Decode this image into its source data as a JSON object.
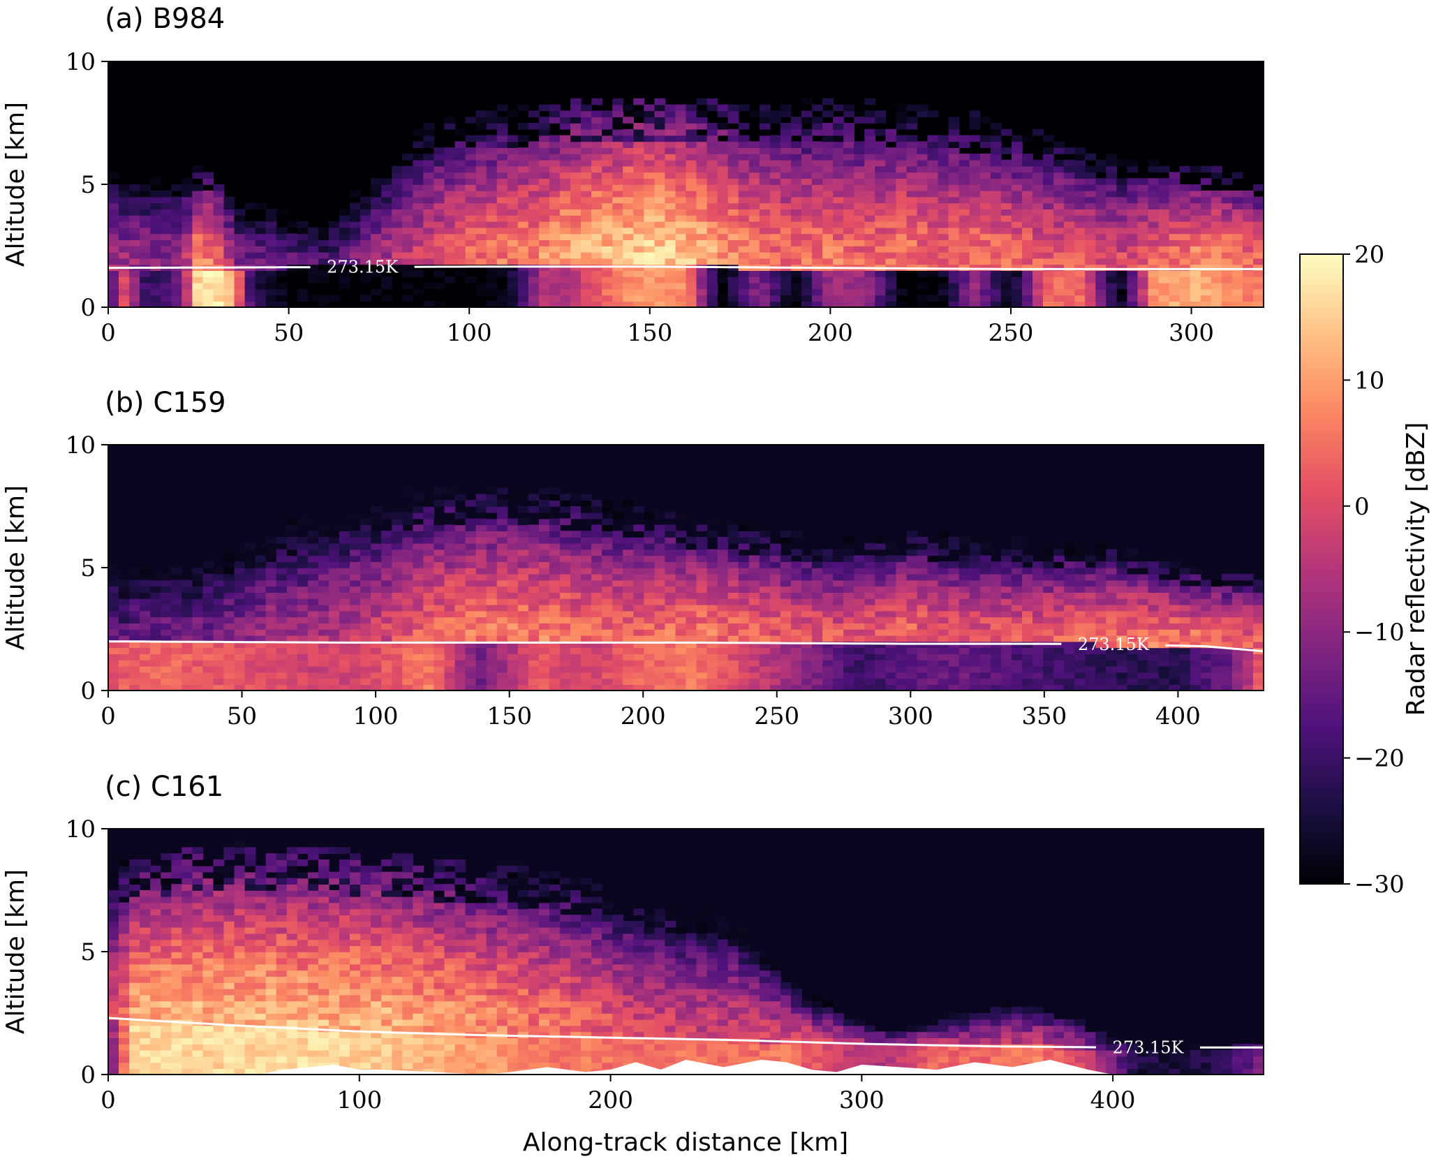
{
  "chart_data": [
    {
      "type": "heatmap",
      "title": "(a) B984",
      "xlabel": "",
      "ylabel": "Altitude [km]",
      "xlim": [
        0,
        320
      ],
      "ylim": [
        0,
        10
      ],
      "xticks": [
        0,
        50,
        100,
        150,
        200,
        250,
        300
      ],
      "yticks": [
        0,
        5,
        10
      ],
      "xtick_labels": [
        "0",
        "50",
        "100",
        "150",
        "200",
        "250",
        "300"
      ],
      "ytick_labels": [
        "0",
        "5",
        "10"
      ],
      "value_unit": "dBZ",
      "columns": [
        {
          "x": 0,
          "top": 6.6,
          "peak": -8,
          "rain": -18
        },
        {
          "x": 5,
          "top": 6.3,
          "peak": -8,
          "rain": 2
        },
        {
          "x": 10,
          "top": 6.2,
          "peak": -9,
          "rain": -20
        },
        {
          "x": 15,
          "top": 6.4,
          "peak": -10,
          "rain": -20
        },
        {
          "x": 20,
          "top": 6.1,
          "peak": -9,
          "rain": -15
        },
        {
          "x": 25,
          "top": 5.8,
          "peak": 8,
          "rain": 18
        },
        {
          "x": 30,
          "top": 5.6,
          "peak": 6,
          "rain": 18
        },
        {
          "x": 35,
          "top": 5.5,
          "peak": -10,
          "rain": 10
        },
        {
          "x": 40,
          "top": 5.4,
          "peak": -14,
          "rain": -22
        },
        {
          "x": 50,
          "top": 5.2,
          "peak": -16,
          "rain": -30
        },
        {
          "x": 60,
          "top": 4.8,
          "peak": -18,
          "rain": -30
        },
        {
          "x": 70,
          "top": 5.8,
          "peak": -10,
          "rain": -30
        },
        {
          "x": 80,
          "top": 6.8,
          "peak": -4,
          "rain": -30
        },
        {
          "x": 90,
          "top": 8.0,
          "peak": 0,
          "rain": -30
        },
        {
          "x": 100,
          "top": 8.0,
          "peak": 4,
          "rain": -30
        },
        {
          "x": 110,
          "top": 8.2,
          "peak": 6,
          "rain": -30
        },
        {
          "x": 120,
          "top": 8.3,
          "peak": 8,
          "rain": -6
        },
        {
          "x": 130,
          "top": 8.4,
          "peak": 12,
          "rain": -4
        },
        {
          "x": 140,
          "top": 8.5,
          "peak": 14,
          "rain": 6
        },
        {
          "x": 150,
          "top": 8.6,
          "peak": 16,
          "rain": 10
        },
        {
          "x": 160,
          "top": 8.5,
          "peak": 14,
          "rain": 8
        },
        {
          "x": 170,
          "top": 8.4,
          "peak": 10,
          "rain": -30
        },
        {
          "x": 180,
          "top": 8.3,
          "peak": 6,
          "rain": -10
        },
        {
          "x": 190,
          "top": 8.4,
          "peak": 4,
          "rain": -30
        },
        {
          "x": 200,
          "top": 8.5,
          "peak": 6,
          "rain": -8
        },
        {
          "x": 210,
          "top": 8.4,
          "peak": 4,
          "rain": -8
        },
        {
          "x": 220,
          "top": 8.2,
          "peak": 6,
          "rain": -30
        },
        {
          "x": 230,
          "top": 8.1,
          "peak": 4,
          "rain": -30
        },
        {
          "x": 240,
          "top": 7.9,
          "peak": 6,
          "rain": -8
        },
        {
          "x": 250,
          "top": 7.6,
          "peak": 4,
          "rain": -30
        },
        {
          "x": 260,
          "top": 7.4,
          "peak": 2,
          "rain": 4
        },
        {
          "x": 270,
          "top": 6.8,
          "peak": 2,
          "rain": 4
        },
        {
          "x": 280,
          "top": 6.4,
          "peak": 0,
          "rain": -30
        },
        {
          "x": 290,
          "top": 6.2,
          "peak": 4,
          "rain": 10
        },
        {
          "x": 300,
          "top": 5.9,
          "peak": 8,
          "rain": 12
        },
        {
          "x": 310,
          "top": 5.6,
          "peak": 8,
          "rain": 8
        },
        {
          "x": 320,
          "top": 5.4,
          "peak": 4,
          "rain": 6
        }
      ],
      "isotherm": {
        "label": "273.15K",
        "x": [
          0,
          100,
          150,
          200,
          250,
          320
        ],
        "y": [
          1.6,
          1.65,
          1.65,
          1.6,
          1.55,
          1.55
        ]
      }
    },
    {
      "type": "heatmap",
      "title": "(b) C159",
      "xlabel": "",
      "ylabel": "Altitude [km]",
      "xlim": [
        0,
        432
      ],
      "ylim": [
        0,
        10
      ],
      "xticks": [
        0,
        50,
        100,
        150,
        200,
        250,
        300,
        350,
        400
      ],
      "yticks": [
        0,
        5,
        10
      ],
      "xtick_labels": [
        "0",
        "50",
        "100",
        "150",
        "200",
        "250",
        "300",
        "350",
        "400"
      ],
      "ytick_labels": [
        "0",
        "5",
        "10"
      ],
      "value_unit": "dBZ",
      "columns": [
        {
          "x": 0,
          "top": 6.8,
          "peak": -16,
          "rain": 2
        },
        {
          "x": 20,
          "top": 6.6,
          "peak": -14,
          "rain": 4
        },
        {
          "x": 40,
          "top": 6.8,
          "peak": -12,
          "rain": 2
        },
        {
          "x": 60,
          "top": 7.4,
          "peak": -8,
          "rain": 0
        },
        {
          "x": 80,
          "top": 8.2,
          "peak": -6,
          "rain": -2
        },
        {
          "x": 100,
          "top": 8.0,
          "peak": -2,
          "rain": 0
        },
        {
          "x": 120,
          "top": 8.3,
          "peak": 4,
          "rain": 6
        },
        {
          "x": 140,
          "top": 8.4,
          "peak": 6,
          "rain": -14
        },
        {
          "x": 160,
          "top": 8.3,
          "peak": 6,
          "rain": 2
        },
        {
          "x": 180,
          "top": 8.0,
          "peak": 4,
          "rain": -2
        },
        {
          "x": 200,
          "top": 7.6,
          "peak": 4,
          "rain": 4
        },
        {
          "x": 220,
          "top": 7.0,
          "peak": 6,
          "rain": 6
        },
        {
          "x": 240,
          "top": 6.8,
          "peak": 4,
          "rain": -2
        },
        {
          "x": 260,
          "top": 6.4,
          "peak": 2,
          "rain": -10
        },
        {
          "x": 280,
          "top": 6.2,
          "peak": 2,
          "rain": -20
        },
        {
          "x": 300,
          "top": 6.6,
          "peak": 4,
          "rain": -16
        },
        {
          "x": 320,
          "top": 6.4,
          "peak": 2,
          "rain": -14
        },
        {
          "x": 340,
          "top": 6.2,
          "peak": 2,
          "rain": -18
        },
        {
          "x": 360,
          "top": 6.0,
          "peak": 4,
          "rain": -20
        },
        {
          "x": 380,
          "top": 5.8,
          "peak": 6,
          "rain": -22
        },
        {
          "x": 400,
          "top": 5.2,
          "peak": 6,
          "rain": -22
        },
        {
          "x": 420,
          "top": 5.0,
          "peak": 4,
          "rain": -14
        },
        {
          "x": 432,
          "top": 4.8,
          "peak": 4,
          "rain": 4
        }
      ],
      "isotherm": {
        "label": "273.15K",
        "x": [
          0,
          88,
          100,
          218,
          300,
          352,
          390,
          410,
          432
        ],
        "y": [
          2.0,
          1.95,
          1.95,
          1.95,
          1.9,
          1.9,
          1.85,
          1.8,
          1.6
        ]
      }
    },
    {
      "type": "heatmap",
      "title": "(c) C161",
      "xlabel": "Along-track distance [km]",
      "ylabel": "Altitude [km]",
      "xlim": [
        0,
        460
      ],
      "ylim": [
        0,
        10
      ],
      "xticks": [
        0,
        100,
        200,
        300,
        400
      ],
      "yticks": [
        0,
        5,
        10
      ],
      "xtick_labels": [
        "0",
        "100",
        "200",
        "300",
        "400"
      ],
      "ytick_labels": [
        "0",
        "5",
        "10"
      ],
      "value_unit": "dBZ",
      "columns": [
        {
          "x": 0,
          "top": 8.6,
          "peak": -4,
          "rain": -14
        },
        {
          "x": 10,
          "top": 8.8,
          "peak": 10,
          "rain": 16
        },
        {
          "x": 30,
          "top": 9.2,
          "peak": 12,
          "rain": 16
        },
        {
          "x": 50,
          "top": 9.4,
          "peak": 12,
          "rain": 16
        },
        {
          "x": 70,
          "top": 9.3,
          "peak": 12,
          "rain": 16
        },
        {
          "x": 90,
          "top": 9.2,
          "peak": 12,
          "rain": 16
        },
        {
          "x": 110,
          "top": 9.0,
          "peak": 12,
          "rain": 14
        },
        {
          "x": 130,
          "top": 8.8,
          "peak": 10,
          "rain": 12
        },
        {
          "x": 150,
          "top": 8.6,
          "peak": 8,
          "rain": 10
        },
        {
          "x": 170,
          "top": 8.4,
          "peak": 6,
          "rain": 6
        },
        {
          "x": 190,
          "top": 8.0,
          "peak": 4,
          "rain": 6
        },
        {
          "x": 210,
          "top": 7.6,
          "peak": 0,
          "rain": 4
        },
        {
          "x": 230,
          "top": 7.2,
          "peak": -2,
          "rain": 6
        },
        {
          "x": 250,
          "top": 6.8,
          "peak": -2,
          "rain": 4
        },
        {
          "x": 270,
          "top": 4.0,
          "peak": 0,
          "rain": 6
        },
        {
          "x": 290,
          "top": 2.8,
          "peak": -4,
          "rain": -2
        },
        {
          "x": 310,
          "top": 2.0,
          "peak": -10,
          "rain": -6
        },
        {
          "x": 330,
          "top": 2.6,
          "peak": -6,
          "rain": 4
        },
        {
          "x": 350,
          "top": 3.0,
          "peak": -4,
          "rain": 4
        },
        {
          "x": 370,
          "top": 3.2,
          "peak": -4,
          "rain": 6
        },
        {
          "x": 390,
          "top": 2.4,
          "peak": -10,
          "rain": -2
        },
        {
          "x": 410,
          "top": 1.0,
          "peak": -24,
          "rain": -24
        },
        {
          "x": 440,
          "top": 0.8,
          "peak": -24,
          "rain": -24
        },
        {
          "x": 460,
          "top": 2.0,
          "peak": -16,
          "rain": -12
        }
      ],
      "isotherm": {
        "label": "273.15K",
        "x": [
          0,
          50,
          100,
          150,
          200,
          250,
          300,
          350,
          400,
          460
        ],
        "y": [
          2.3,
          2.0,
          1.75,
          1.6,
          1.5,
          1.4,
          1.25,
          1.15,
          1.1,
          1.1
        ]
      },
      "terrain": {
        "x": [
          0,
          60,
          70,
          90,
          100,
          110,
          150,
          160,
          175,
          190,
          200,
          210,
          220,
          230,
          245,
          260,
          270,
          280,
          290,
          300,
          315,
          330,
          345,
          360,
          375,
          390,
          400
        ],
        "y": [
          0,
          0,
          0.2,
          0.4,
          0.2,
          0.2,
          0,
          0.1,
          0.3,
          0.1,
          0.2,
          0.5,
          0.2,
          0.6,
          0.3,
          0.6,
          0.5,
          0.2,
          0.1,
          0.4,
          0.3,
          0.2,
          0.5,
          0.3,
          0.6,
          0.2,
          0
        ]
      }
    }
  ],
  "colorbar": {
    "label": "Radar reflectivity [dBZ]",
    "range": [
      -30,
      20
    ],
    "ticks": [
      20,
      10,
      0,
      -10,
      -20,
      -30
    ],
    "tick_labels": [
      "20",
      "10",
      "0",
      "−10",
      "−20",
      "−30"
    ],
    "colormap": "magma",
    "colors": [
      "#000004",
      "#1c1044",
      "#4f127b",
      "#812581",
      "#b5367a",
      "#e55064",
      "#fb8761",
      "#fec287",
      "#fcfdbf"
    ]
  }
}
